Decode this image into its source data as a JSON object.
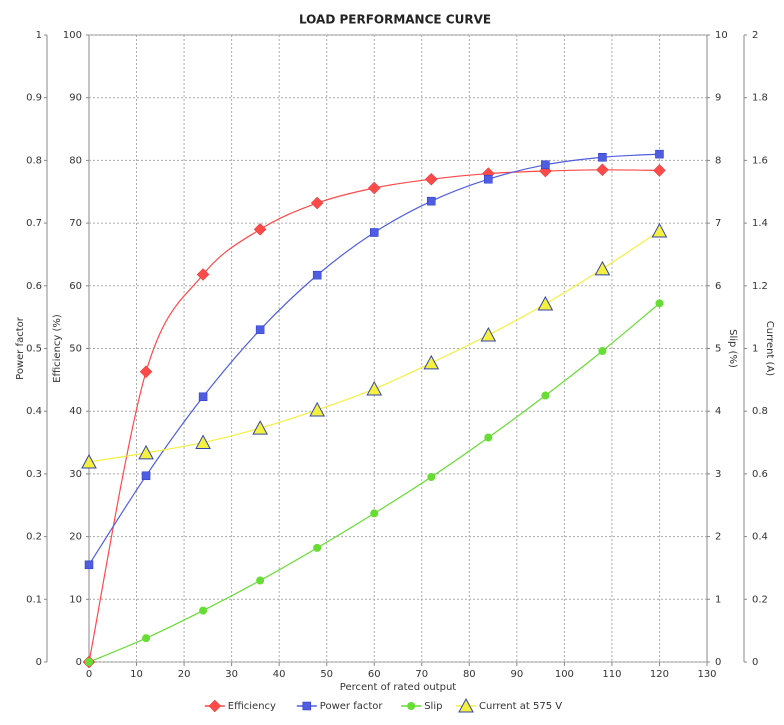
{
  "chart_data": {
    "type": "line",
    "title": "LOAD PERFORMANCE CURVE",
    "x_label": "Percent of rated output",
    "x": [
      0,
      12,
      24,
      36,
      48,
      60,
      72,
      84,
      96,
      108,
      120
    ],
    "xlim": [
      0,
      130
    ],
    "xticks": [
      0,
      10,
      20,
      30,
      40,
      50,
      60,
      70,
      80,
      90,
      100,
      110,
      120,
      130
    ],
    "grid": true,
    "y_axes": [
      {
        "label": "Power factor",
        "side": "left",
        "lim": [
          0,
          1
        ],
        "ticks": [
          0,
          0.1,
          0.2,
          0.3,
          0.4,
          0.5,
          0.6,
          0.7,
          0.8,
          0.9,
          1
        ]
      },
      {
        "label": "Efficiency (%)",
        "side": "left",
        "lim": [
          0,
          100
        ],
        "ticks": [
          0,
          10,
          20,
          30,
          40,
          50,
          60,
          70,
          80,
          90,
          100
        ]
      },
      {
        "label": "Slip (%)",
        "side": "right",
        "lim": [
          0,
          10
        ],
        "ticks": [
          0,
          1,
          2,
          3,
          4,
          5,
          6,
          7,
          8,
          9,
          10
        ]
      },
      {
        "label": "Current (A)",
        "side": "right",
        "lim": [
          0,
          2
        ],
        "ticks": [
          0,
          0.2,
          0.4,
          0.6,
          0.8,
          1,
          1.2,
          1.4,
          1.6,
          1.8,
          2
        ]
      }
    ],
    "series": [
      {
        "name": "Efficiency",
        "color": "#ff4a4a",
        "marker": "diamond",
        "axis": 1,
        "values": [
          0,
          46.3,
          61.8,
          69,
          73.2,
          75.6,
          77,
          77.9,
          78.3,
          78.5,
          78.4
        ]
      },
      {
        "name": "Power factor",
        "color": "#4f5ee0",
        "marker": "square",
        "axis": 0,
        "values": [
          0.155,
          0.297,
          0.423,
          0.53,
          0.617,
          0.685,
          0.735,
          0.77,
          0.793,
          0.805,
          0.81
        ]
      },
      {
        "name": "Slip",
        "color": "#66dd33",
        "marker": "circle",
        "axis": 2,
        "values": [
          0,
          0.38,
          0.82,
          1.3,
          1.82,
          2.37,
          2.95,
          3.58,
          4.25,
          4.96,
          5.72
        ]
      },
      {
        "name": "Current at 575 V",
        "color": "#f5f040",
        "marker": "triangle",
        "axis": 3,
        "values": [
          0.638,
          0.667,
          0.7,
          0.746,
          0.804,
          0.871,
          0.954,
          1.043,
          1.142,
          1.254,
          1.375
        ]
      }
    ]
  }
}
